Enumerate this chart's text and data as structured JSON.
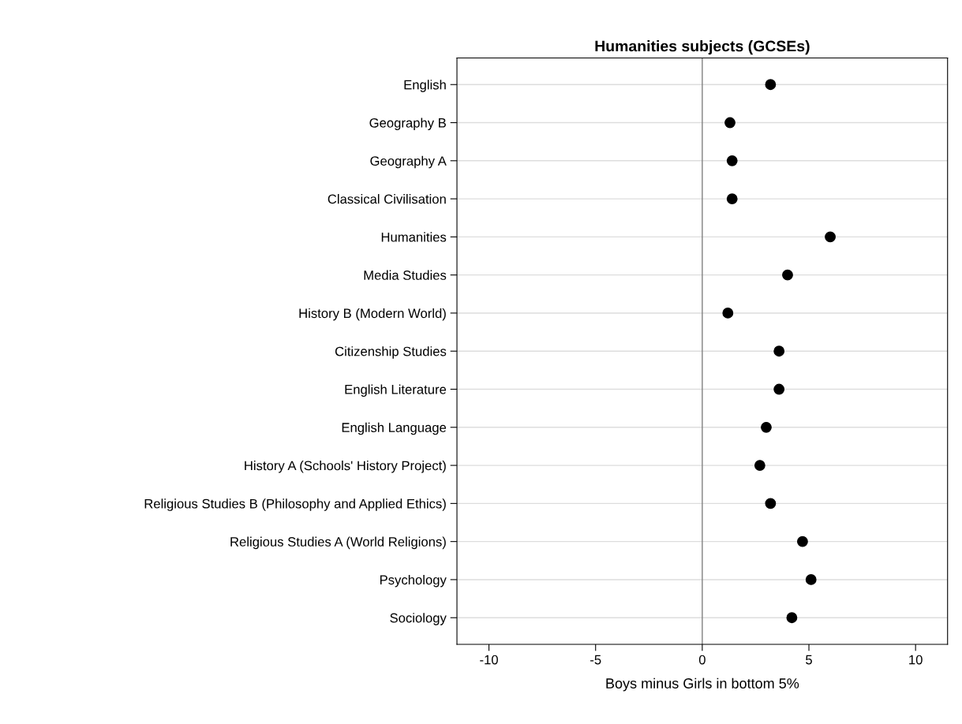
{
  "chart_data": {
    "type": "scatter",
    "title": "Humanities subjects (GCSEs)",
    "xlabel": "Boys minus Girls in bottom 5%",
    "orientation": "horizontal",
    "categories": [
      "English",
      "Geography B",
      "Geography A",
      "Classical Civilisation",
      "Humanities",
      "Media Studies",
      "History B (Modern World)",
      "Citizenship Studies",
      "English Literature",
      "English Language",
      "History A (Schools' History Project)",
      "Religious Studies B (Philosophy and Applied Ethics)",
      "Religious Studies A (World Religions)",
      "Psychology",
      "Sociology"
    ],
    "series": [
      {
        "color": "#000000",
        "values": [
          3.2,
          1.3,
          1.4,
          1.4,
          6.0,
          4.0,
          1.2,
          3.6,
          3.6,
          3.0,
          2.7,
          3.2,
          4.7,
          5.1,
          4.2
        ]
      }
    ],
    "xlim": [
      -11.5,
      11.5
    ],
    "xticks": [
      -10,
      -5,
      0,
      5,
      10
    ],
    "marker": "circle",
    "grid": "y",
    "ref_lines": [
      {
        "axis": "x",
        "value": 0,
        "color": "#808080"
      }
    ]
  }
}
